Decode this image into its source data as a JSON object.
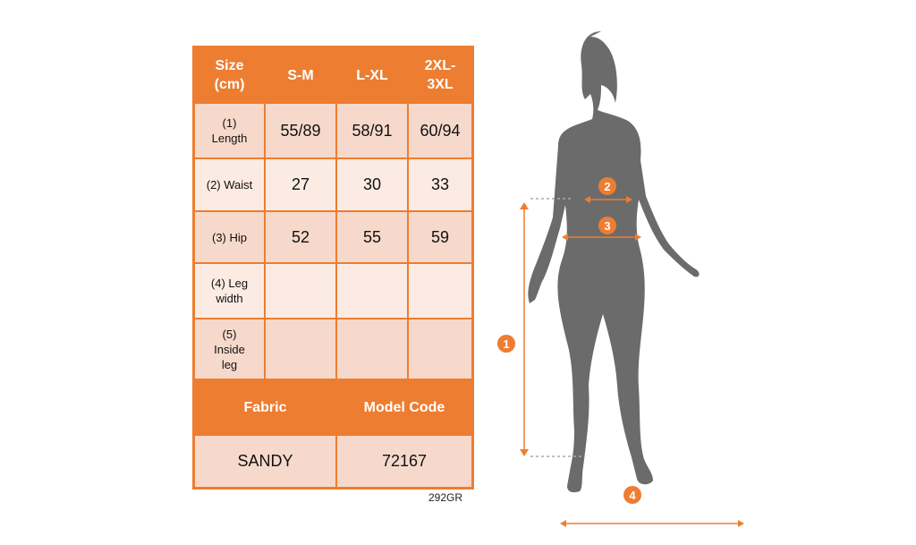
{
  "table": {
    "headers": [
      "Size\n(cm)",
      "S-M",
      "L-XL",
      "2XL-\n3XL"
    ],
    "rows": [
      {
        "label": "(1)\nLength",
        "values": [
          "55/89",
          "58/91",
          "60/94"
        ]
      },
      {
        "label": "(2) Waist",
        "values": [
          "27",
          "30",
          "33"
        ]
      },
      {
        "label": "(3) Hip",
        "values": [
          "52",
          "55",
          "59"
        ]
      },
      {
        "label": "(4) Leg\nwidth",
        "values": [
          "",
          "",
          ""
        ]
      },
      {
        "label": "(5)\nInside\nleg",
        "values": [
          "",
          "",
          ""
        ]
      }
    ],
    "footer_headers": [
      "Fabric",
      "Model Code"
    ],
    "footer_values": [
      "SANDY",
      "72167"
    ]
  },
  "product_code": "292GR",
  "figure": {
    "markers": [
      "1",
      "2",
      "3",
      "4"
    ]
  },
  "colors": {
    "accent": "#ED7D31",
    "row_dark": "#F7D9CB",
    "row_light": "#FBEBE3",
    "silhouette": "#6B6B6B"
  }
}
